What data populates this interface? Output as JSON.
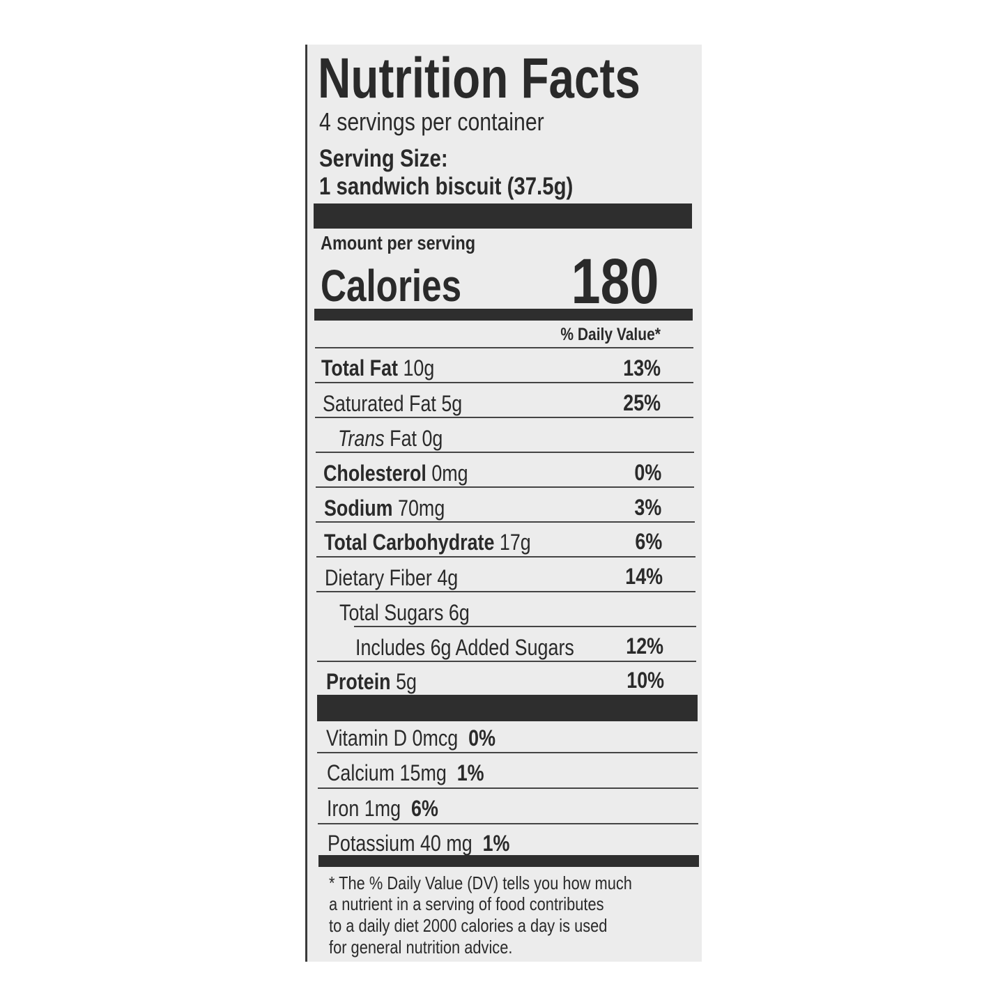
{
  "label": {
    "title": "Nutrition Facts",
    "servings_per_container": "4 servings per container",
    "serving_size_label": "Serving Size:",
    "serving_size_value": "1 sandwich biscuit (37.5g)",
    "amount_per_serving": "Amount per serving",
    "calories_label": "Calories",
    "calories_value": "180",
    "daily_value_header": "% Daily Value*",
    "nutrients": [
      {
        "name": "Total Fat",
        "amount": "10g",
        "dv": "13%"
      },
      {
        "name": "Saturated Fat",
        "amount": "5g",
        "dv": "25%"
      },
      {
        "name": "Trans",
        "amount": "Fat 0g",
        "dv": ""
      },
      {
        "name": "Cholesterol",
        "amount": "0mg",
        "dv": "0%"
      },
      {
        "name": "Sodium",
        "amount": "70mg",
        "dv": "3%"
      },
      {
        "name": "Total Carbohydrate",
        "amount": "17g",
        "dv": "6%"
      },
      {
        "name": "Dietary Fiber",
        "amount": "4g",
        "dv": "14%"
      },
      {
        "name": "Total Sugars",
        "amount": "6g",
        "dv": ""
      },
      {
        "name": "Includes 6g Added Sugars",
        "amount": "",
        "dv": "12%"
      },
      {
        "name": "Protein",
        "amount": "5g",
        "dv": "10%"
      }
    ],
    "vitamins": [
      {
        "name": "Vitamin D 0mcg",
        "dv": "0%"
      },
      {
        "name": "Calcium 15mg",
        "dv": "1%"
      },
      {
        "name": "Iron 1mg",
        "dv": "6%"
      },
      {
        "name": "Potassium 40 mg",
        "dv": "1%"
      }
    ],
    "footnote": [
      "* The % Daily Value (DV) tells you how much",
      "a nutrient in a serving of food contributes",
      "to a daily diet 2000 calories a day is used",
      "for general nutrition advice."
    ]
  }
}
